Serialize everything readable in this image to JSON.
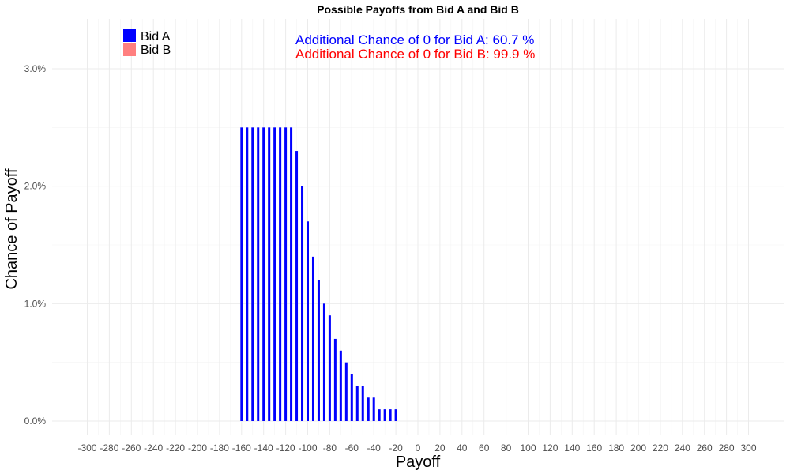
{
  "chart_data": {
    "type": "bar",
    "title": "Possible Payoffs from Bid A and Bid B",
    "xlabel": "Payoff",
    "ylabel": "Chance of Payoff",
    "xlim": [
      -315,
      315
    ],
    "ylim": [
      0,
      0.03
    ],
    "x_ticks": [
      -300,
      -280,
      -260,
      -240,
      -220,
      -200,
      -180,
      -160,
      -140,
      -120,
      -100,
      -80,
      -60,
      -40,
      -20,
      0,
      20,
      40,
      60,
      80,
      100,
      120,
      140,
      160,
      180,
      200,
      220,
      240,
      260,
      280,
      300
    ],
    "y_ticks": [
      0,
      0.01,
      0.02,
      0.03
    ],
    "y_tick_labels": [
      "0.0%",
      "1.0%",
      "2.0%",
      "3.0%"
    ],
    "grid": true,
    "legend": {
      "position": "top-left"
    },
    "colors": {
      "bid_a": "#0000ff",
      "bid_b": "#ff7f7f"
    },
    "series": [
      {
        "name": "Bid A",
        "color": "#0000ff",
        "points": [
          [
            -160,
            0.025
          ],
          [
            -155,
            0.025
          ],
          [
            -150,
            0.025
          ],
          [
            -145,
            0.025
          ],
          [
            -140,
            0.025
          ],
          [
            -135,
            0.025
          ],
          [
            -130,
            0.025
          ],
          [
            -125,
            0.025
          ],
          [
            -120,
            0.025
          ],
          [
            -115,
            0.025
          ],
          [
            -110,
            0.023
          ],
          [
            -105,
            0.02
          ],
          [
            -100,
            0.017
          ],
          [
            -95,
            0.014
          ],
          [
            -90,
            0.012
          ],
          [
            -85,
            0.01
          ],
          [
            -80,
            0.009
          ],
          [
            -75,
            0.007
          ],
          [
            -70,
            0.006
          ],
          [
            -65,
            0.005
          ],
          [
            -60,
            0.004
          ],
          [
            -55,
            0.003
          ],
          [
            -50,
            0.003
          ],
          [
            -45,
            0.002
          ],
          [
            -40,
            0.002
          ],
          [
            -35,
            0.001
          ],
          [
            -30,
            0.001
          ],
          [
            -25,
            0.001
          ],
          [
            -20,
            0.001
          ]
        ]
      },
      {
        "name": "Bid B",
        "color": "#ff7f7f",
        "points": []
      }
    ],
    "annotations": [
      {
        "text": "Additional Chance of 0 for Bid A:  60.7 %",
        "color": "#0000ff"
      },
      {
        "text": "Additional Chance of 0 for Bid B:  99.9 %",
        "color": "#ff0000"
      }
    ]
  }
}
